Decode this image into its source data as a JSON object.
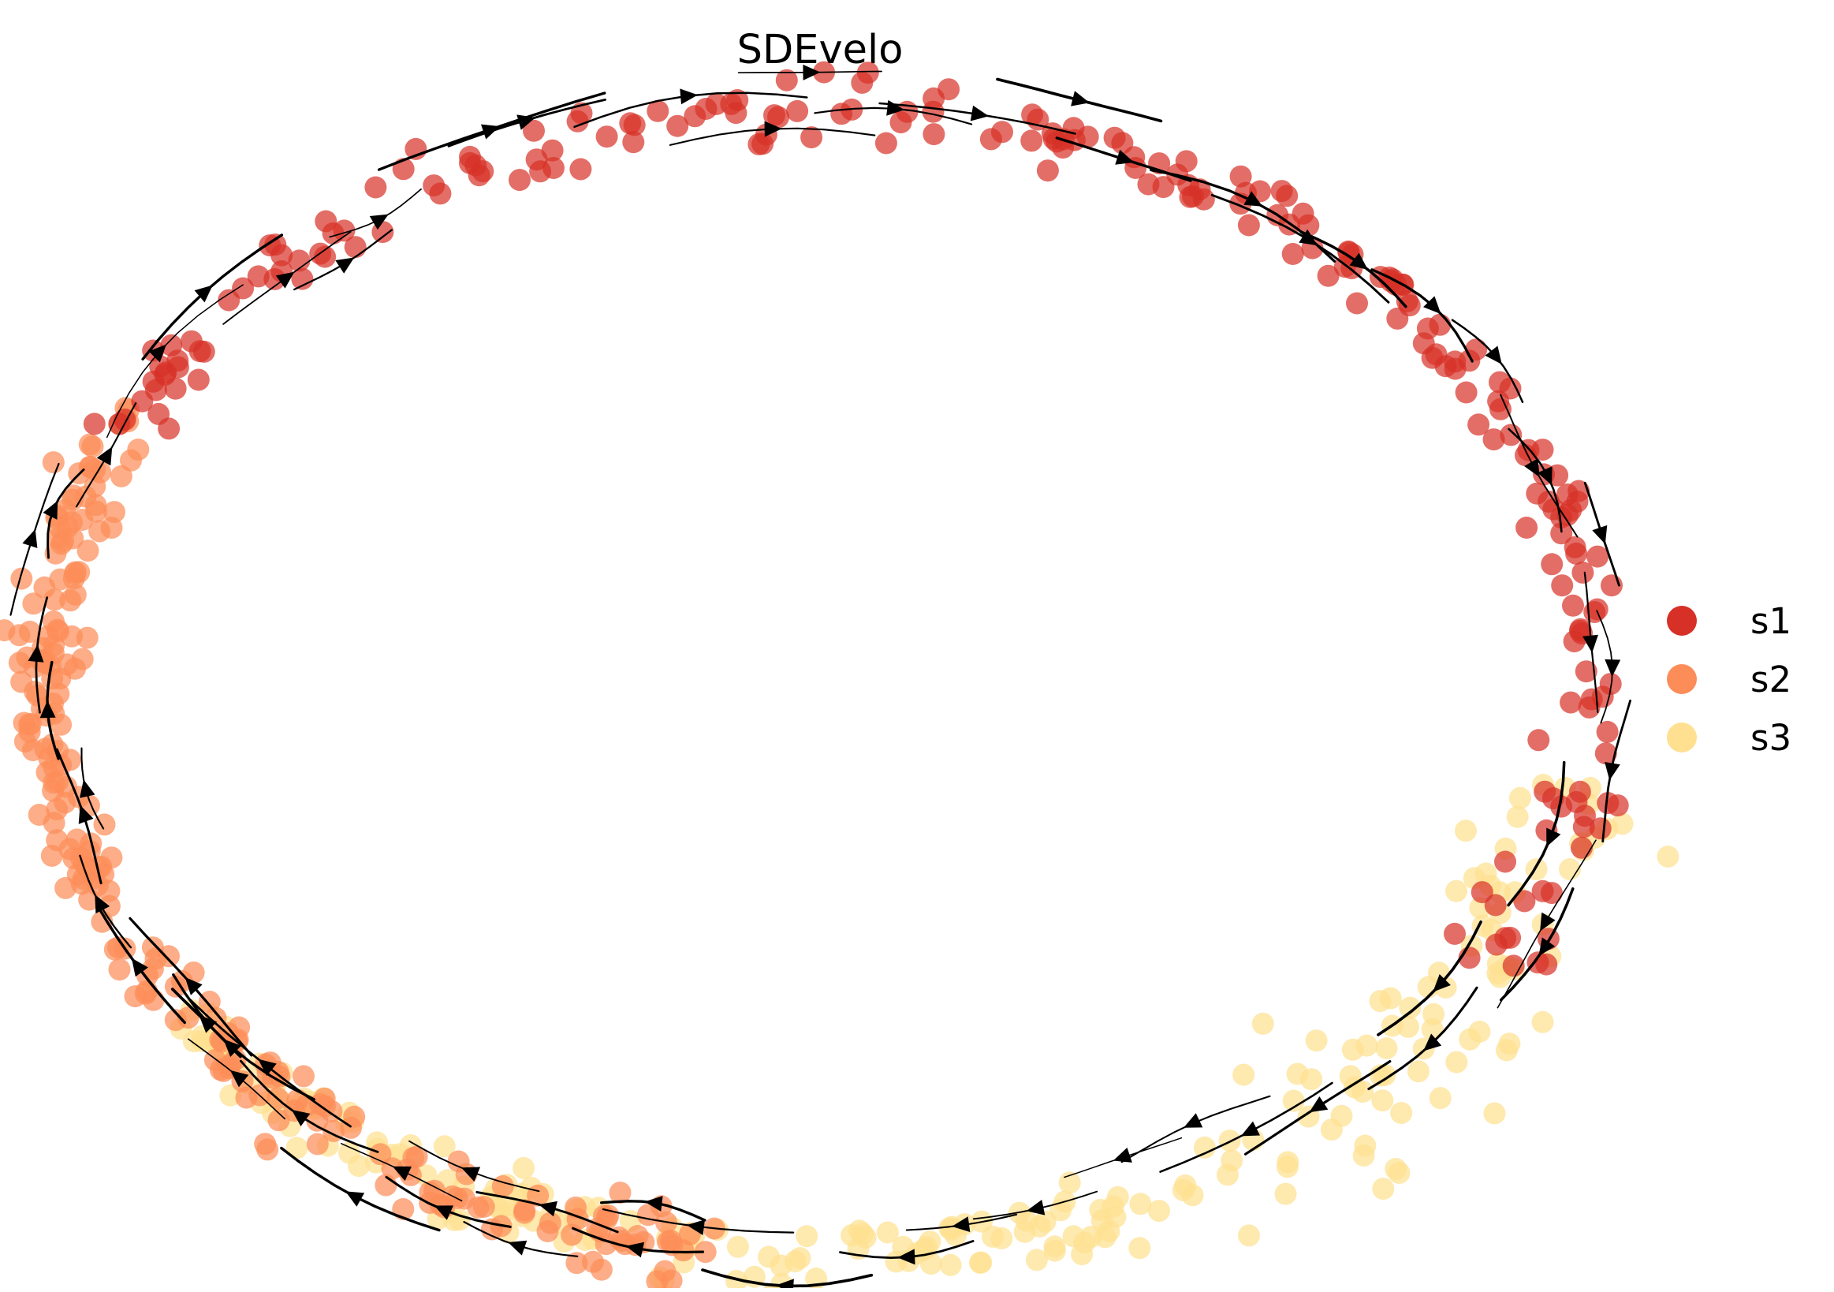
{
  "chart_data": {
    "type": "scatter",
    "title": "SDEvelo",
    "xlabel": "",
    "ylabel": "",
    "axes_visible": false,
    "grid": false,
    "legend_position": "right",
    "overlay": "velocity-streamlines",
    "legend": [
      {
        "label": "s1",
        "color": "#d73027"
      },
      {
        "label": "s2",
        "color": "#fc8d59"
      },
      {
        "label": "s3",
        "color": "#fee090"
      }
    ],
    "series": [
      {
        "name": "s1",
        "color": "#d73027",
        "arc_from_deg": -155,
        "arc_to_deg": 30
      },
      {
        "name": "s2",
        "color": "#fc8d59",
        "arc_from_deg": -262,
        "arc_to_deg": -152
      },
      {
        "name": "s3",
        "color": "#fee090",
        "arc_from_deg": 10,
        "arc_to_deg": 145
      }
    ]
  }
}
